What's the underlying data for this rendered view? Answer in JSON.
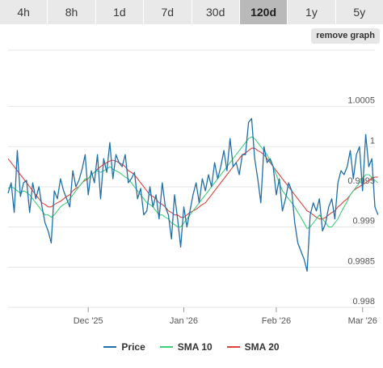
{
  "tabs": [
    {
      "label": "4h",
      "active": false
    },
    {
      "label": "8h",
      "active": false
    },
    {
      "label": "1d",
      "active": false
    },
    {
      "label": "7d",
      "active": false
    },
    {
      "label": "30d",
      "active": false
    },
    {
      "label": "120d",
      "active": true
    },
    {
      "label": "1y",
      "active": false
    },
    {
      "label": "5y",
      "active": false
    }
  ],
  "remove_graph_label": "remove graph",
  "colors": {
    "price": "#1f6fa8",
    "sma10": "#3fcf7a",
    "sma20": "#e0413a",
    "grid": "#e6e6e6",
    "axis_text": "#555555"
  },
  "chart_data": {
    "type": "line",
    "x_ticks": [
      {
        "label": "Dec '25",
        "x": 26
      },
      {
        "label": "Jan '26",
        "x": 57
      },
      {
        "label": "Feb '26",
        "x": 87
      },
      {
        "label": "Mar '26",
        "x": 115
      }
    ],
    "xlim": [
      0,
      119
    ],
    "y_ticks": [
      0.998,
      0.9985,
      0.999,
      0.9995,
      1,
      1.0005
    ],
    "y_tick_labels": [
      "0.998",
      "0.9985",
      "0.999",
      "0.9995",
      "1",
      "1.0005"
    ],
    "ylim": [
      0.998,
      1.0012
    ],
    "grid": true,
    "legend_position": "bottom",
    "series": [
      {
        "name": "Price",
        "values": [
          0.99942,
          0.99955,
          0.99918,
          0.99995,
          0.99938,
          0.99955,
          0.99958,
          0.99918,
          0.99955,
          0.99935,
          0.9995,
          0.99925,
          0.99905,
          0.99895,
          0.9988,
          0.99945,
          0.99935,
          0.9996,
          0.99945,
          0.99935,
          0.99925,
          0.9997,
          0.9995,
          0.99958,
          0.99972,
          0.9999,
          0.9994,
          0.9997,
          0.99955,
          0.9999,
          0.99935,
          0.99985,
          0.99968,
          1.00005,
          0.9996,
          0.9999,
          0.9998,
          0.99975,
          0.9999,
          0.99955,
          0.9996,
          0.99968,
          0.99935,
          0.99948,
          0.99915,
          0.9992,
          0.9995,
          0.99925,
          0.9994,
          0.9991,
          0.99955,
          0.99925,
          0.99915,
          0.99885,
          0.9994,
          0.9991,
          0.99875,
          0.99925,
          0.999,
          0.9992,
          0.9994,
          0.99955,
          0.9993,
          0.9996,
          0.99945,
          0.99965,
          0.9995,
          0.9998,
          0.9996,
          0.99975,
          0.99995,
          0.9997,
          1.0001,
          0.99975,
          0.9998,
          0.99965,
          0.9999,
          0.9999,
          1.0003,
          1.00035,
          0.99985,
          0.9996,
          0.9993,
          1.0,
          0.9998,
          0.99985,
          0.99975,
          0.9994,
          0.9996,
          0.9992,
          0.99935,
          0.99955,
          0.99945,
          0.99905,
          0.9988,
          0.9987,
          0.9986,
          0.99845,
          0.99915,
          0.9993,
          0.9992,
          0.99935,
          0.99895,
          0.99905,
          0.99925,
          0.99935,
          0.9991,
          0.99955,
          0.9997,
          0.99965,
          0.99975,
          0.99995,
          0.9996,
          0.9999,
          1.0,
          0.99945,
          1.00015,
          0.99975,
          0.99985,
          0.99925,
          0.99915
        ],
        "style": "price"
      },
      {
        "name": "SMA 10",
        "values": [
          0.99948,
          0.9995,
          0.99948,
          0.99945,
          0.99942,
          0.99945,
          0.99943,
          0.9994,
          0.99935,
          0.9993,
          0.99925,
          0.9992,
          0.99915,
          0.99915,
          0.99912,
          0.99915,
          0.9992,
          0.99925,
          0.99928,
          0.9993,
          0.99935,
          0.9994,
          0.99945,
          0.9995,
          0.99955,
          0.9996,
          0.9996,
          0.99965,
          0.99968,
          0.9997,
          0.99968,
          0.9997,
          0.99972,
          0.99975,
          0.99972,
          0.9997,
          0.99968,
          0.99965,
          0.99962,
          0.9996,
          0.99955,
          0.9995,
          0.99945,
          0.9994,
          0.99935,
          0.9993,
          0.99928,
          0.99925,
          0.9992,
          0.99915,
          0.99915,
          0.99912,
          0.9991,
          0.99905,
          0.99903,
          0.999,
          0.999,
          0.99905,
          0.9991,
          0.99915,
          0.9992,
          0.99925,
          0.9993,
          0.99935,
          0.9994,
          0.99945,
          0.9995,
          0.99955,
          0.9996,
          0.99965,
          0.9997,
          0.99975,
          0.9998,
          0.99985,
          0.9999,
          0.99995,
          1.0,
          1.00005,
          1.0001,
          1.00012,
          1.0001,
          1.00005,
          1.0,
          0.99995,
          0.9999,
          0.99982,
          0.99975,
          0.99965,
          0.99955,
          0.99945,
          0.9994,
          0.99935,
          0.9993,
          0.99925,
          0.99918,
          0.99912,
          0.99905,
          0.99898,
          0.999,
          0.99905,
          0.9991,
          0.99915,
          0.9991,
          0.99905,
          0.999,
          0.999,
          0.99905,
          0.9991,
          0.99918,
          0.99925,
          0.99932,
          0.9994,
          0.99945,
          0.9995,
          0.99955,
          0.9996,
          0.99965,
          0.99965,
          0.99962,
          0.99958,
          0.99955
        ],
        "style": "sma10"
      },
      {
        "name": "SMA 20",
        "values": [
          0.99985,
          0.9998,
          0.99975,
          0.9997,
          0.99965,
          0.9996,
          0.99955,
          0.9995,
          0.99945,
          0.9994,
          0.99935,
          0.9993,
          0.99928,
          0.99925,
          0.99925,
          0.99928,
          0.9993,
          0.99932,
          0.99935,
          0.99938,
          0.9994,
          0.99945,
          0.99948,
          0.9995,
          0.99955,
          0.99958,
          0.9996,
          0.99965,
          0.99968,
          0.99972,
          0.99975,
          0.99978,
          0.9998,
          0.99982,
          0.99983,
          0.99982,
          0.9998,
          0.99978,
          0.99975,
          0.9997,
          0.99968,
          0.99965,
          0.9996,
          0.99955,
          0.9995,
          0.99945,
          0.9994,
          0.99938,
          0.99935,
          0.9993,
          0.99928,
          0.99925,
          0.9992,
          0.99918,
          0.99915,
          0.99915,
          0.99912,
          0.99912,
          0.99915,
          0.99918,
          0.9992,
          0.99922,
          0.99925,
          0.99928,
          0.9993,
          0.99935,
          0.9994,
          0.99945,
          0.9995,
          0.99955,
          0.9996,
          0.99965,
          0.9997,
          0.99975,
          0.9998,
          0.99985,
          0.9999,
          0.99992,
          0.99995,
          0.99998,
          0.99998,
          0.99995,
          0.99993,
          0.9999,
          0.99985,
          0.9998,
          0.99975,
          0.9997,
          0.99965,
          0.9996,
          0.99955,
          0.9995,
          0.99945,
          0.9994,
          0.99935,
          0.9993,
          0.99925,
          0.9992,
          0.99918,
          0.99915,
          0.99912,
          0.9991,
          0.9991,
          0.99912,
          0.99915,
          0.99918,
          0.9992,
          0.99925,
          0.99928,
          0.99932,
          0.99935,
          0.9994,
          0.99945,
          0.99948,
          0.9995,
          0.99953,
          0.99955,
          0.99958,
          0.9996,
          0.99962,
          0.99962
        ],
        "style": "sma20"
      }
    ]
  }
}
